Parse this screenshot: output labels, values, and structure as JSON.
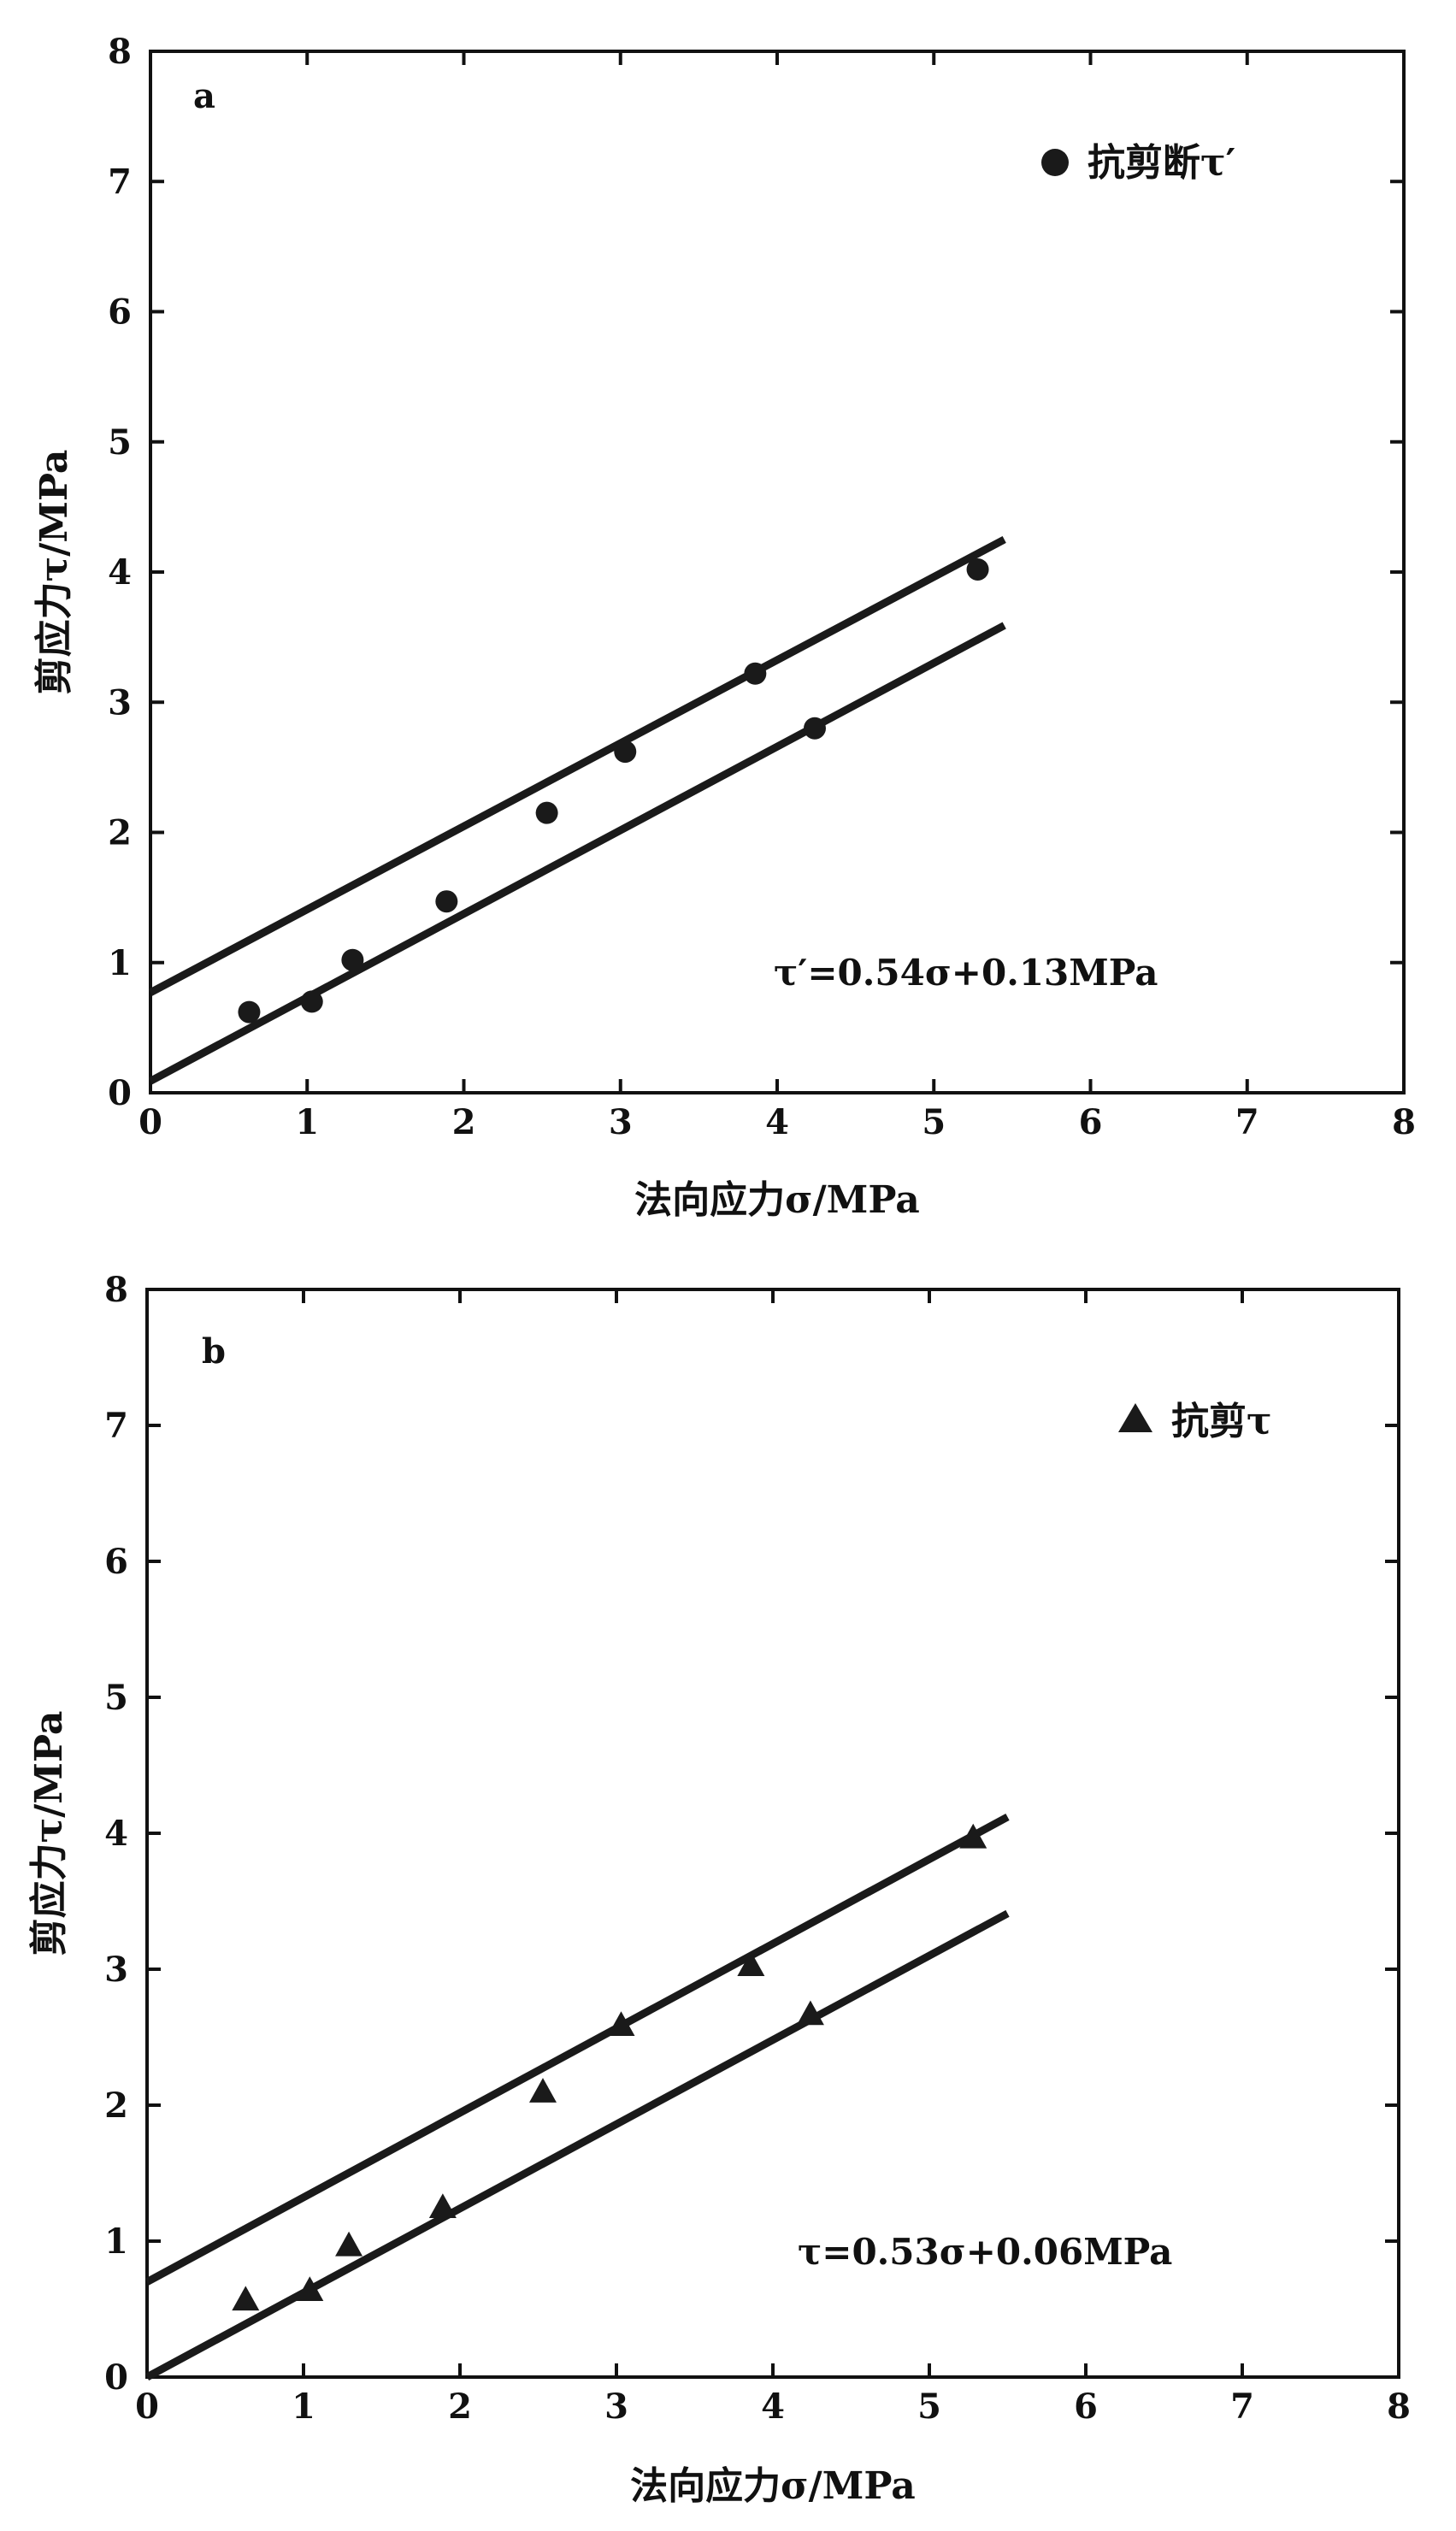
{
  "chart_data": [
    {
      "type": "scatter",
      "panel_label": "a",
      "xlabel": "法向应力σ/MPa",
      "ylabel": "剪应力τ/MPa",
      "xlim": [
        0,
        8
      ],
      "ylim": [
        0,
        8
      ],
      "xticks": [
        0,
        1,
        2,
        3,
        4,
        5,
        6,
        7,
        8
      ],
      "yticks": [
        0,
        1,
        2,
        3,
        4,
        5,
        6,
        7,
        8
      ],
      "grid": false,
      "legend_position": "top-right",
      "series": [
        {
          "name": "抗剪断τ′",
          "marker": "circle",
          "x": [
            0.63,
            1.03,
            1.29,
            1.89,
            2.53,
            3.03,
            3.86,
            4.24,
            5.28
          ],
          "y": [
            0.62,
            0.7,
            1.02,
            1.47,
            2.15,
            2.62,
            3.22,
            2.8,
            4.02
          ]
        }
      ],
      "lines": [
        {
          "x": [
            0,
            5.45
          ],
          "y": [
            0.77,
            4.25
          ]
        },
        {
          "x": [
            0,
            5.45
          ],
          "y": [
            0.09,
            3.59
          ]
        }
      ],
      "annotation": "τ′=0.54σ+0.13MPa",
      "colors": {
        "marks": "#1a1a1a"
      }
    },
    {
      "type": "scatter",
      "panel_label": "b",
      "xlabel": "法向应力σ/MPa",
      "ylabel": "剪应力τ/MPa",
      "xlim": [
        0,
        8
      ],
      "ylim": [
        0,
        8
      ],
      "xticks": [
        0,
        1,
        2,
        3,
        4,
        5,
        6,
        7,
        8
      ],
      "yticks": [
        0,
        1,
        2,
        3,
        4,
        5,
        6,
        7,
        8
      ],
      "grid": false,
      "legend_position": "top-right",
      "series": [
        {
          "name": "抗剪τ",
          "marker": "triangle",
          "x": [
            0.63,
            1.04,
            1.29,
            1.89,
            2.53,
            3.03,
            3.86,
            4.24,
            5.28
          ],
          "y": [
            0.57,
            0.64,
            0.97,
            1.25,
            2.1,
            2.59,
            3.03,
            2.67,
            3.97
          ]
        }
      ],
      "lines": [
        {
          "x": [
            0,
            5.5
          ],
          "y": [
            0.7,
            4.12
          ]
        },
        {
          "x": [
            0,
            5.5
          ],
          "y": [
            0.0,
            3.41
          ]
        }
      ],
      "annotation": "τ=0.53σ+0.06MPa",
      "colors": {
        "marks": "#1a1a1a"
      }
    }
  ]
}
